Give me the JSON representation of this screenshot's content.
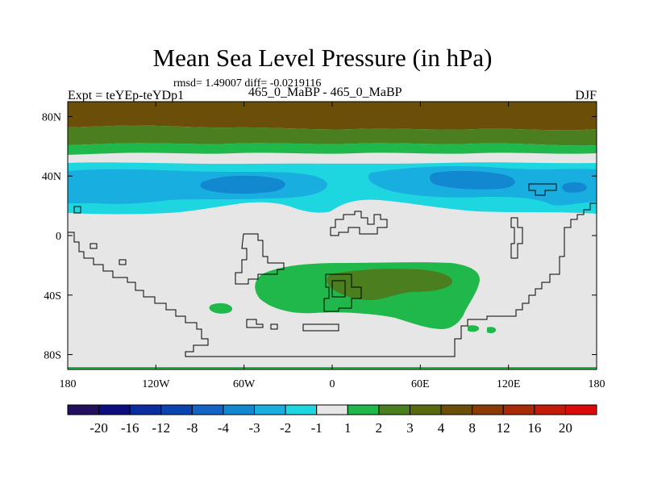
{
  "colors": {
    "strong_positive": "#6b4f08",
    "mid_positive": "#4a7e1e",
    "weak_positive": "#20b84a",
    "near_zero": "#e6e6e6",
    "weak_negative": "#1ed6e0",
    "mid_negative": "#18aee0",
    "strong_negative": "#1288d0",
    "coastline": "#000000",
    "bottom_strip": "#20b84a"
  },
  "chart_data": {
    "type": "heatmap",
    "title": "Mean Sea Level Pressure (in hPa)",
    "stats": "rmsd= 1.49007 diff= -0.0219116",
    "subtitle": "465_0_MaBP - 465_0_MaBP",
    "left_label": "Expt = teYEp-teYDp1",
    "right_label": "DJF",
    "x_range": [
      -180,
      180
    ],
    "y_range": [
      -90,
      90
    ],
    "x_ticks": [
      {
        "value": -180,
        "label": "180"
      },
      {
        "value": -120,
        "label": "120W"
      },
      {
        "value": -60,
        "label": "60W"
      },
      {
        "value": 0,
        "label": "0"
      },
      {
        "value": 60,
        "label": "60E"
      },
      {
        "value": 120,
        "label": "120E"
      },
      {
        "value": 180,
        "label": "180"
      }
    ],
    "y_ticks": [
      {
        "value": 80,
        "label": "80N"
      },
      {
        "value": 40,
        "label": "40N"
      },
      {
        "value": 0,
        "label": "0"
      },
      {
        "value": -40,
        "label": "40S"
      },
      {
        "value": -80,
        "label": "80S"
      }
    ],
    "colorbar": {
      "boundary_labels": [
        "-20",
        "-16",
        "-12",
        "-8",
        "-4",
        "-3",
        "-2",
        "-1",
        "1",
        "2",
        "3",
        "4",
        "8",
        "12",
        "16",
        "20"
      ],
      "colors": [
        "#22105e",
        "#0d0d80",
        "#0a2ea0",
        "#0a44b0",
        "#1265c4",
        "#1288d0",
        "#18aee0",
        "#1ed6e0",
        "#e6e6e6",
        "#20b84a",
        "#4a7e1e",
        "#596a0e",
        "#6b4f08",
        "#8a3a06",
        "#a82a06",
        "#c41a0a",
        "#dc0a0a"
      ]
    },
    "field_bands": [
      {
        "lat_from": 90,
        "lat_to": 73,
        "class": "+4 to +8"
      },
      {
        "lat_from": 73,
        "lat_to": 60,
        "class": "+3 to +4"
      },
      {
        "lat_from": 60,
        "lat_to": 54,
        "class": "+2 to +3"
      },
      {
        "lat_from": 54,
        "lat_to": 50,
        "class": "-1 to +1"
      },
      {
        "lat_from": 50,
        "lat_to": 40,
        "class": "-2 to -1"
      },
      {
        "lat_from": 40,
        "lat_to": 28,
        "class": "-3 to -2"
      },
      {
        "lat_from": 28,
        "lat_to": 20,
        "class": "-2 to -1"
      },
      {
        "lat_from": 20,
        "lat_to": -90,
        "class": "-1 to +1"
      }
    ]
  }
}
